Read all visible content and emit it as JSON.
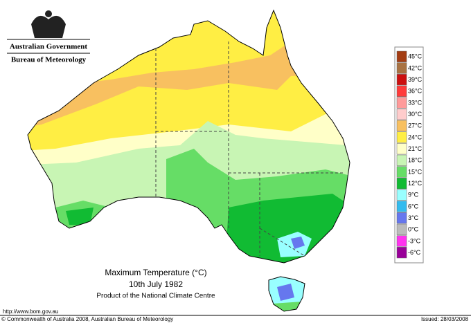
{
  "header": {
    "government": "Australian Government",
    "bureau": "Bureau of Meteorology"
  },
  "legend": {
    "items": [
      {
        "label": "45°C",
        "color": "#a33c12"
      },
      {
        "label": "42°C",
        "color": "#a87242"
      },
      {
        "label": "39°C",
        "color": "#cc1010"
      },
      {
        "label": "36°C",
        "color": "#ff3b3b"
      },
      {
        "label": "33°C",
        "color": "#ff9a9a"
      },
      {
        "label": "30°C",
        "color": "#ffcccc"
      },
      {
        "label": "27°C",
        "color": "#f8c060"
      },
      {
        "label": "24°C",
        "color": "#ffee44"
      },
      {
        "label": "21°C",
        "color": "#ffffc8"
      },
      {
        "label": "18°C",
        "color": "#c8f5b4"
      },
      {
        "label": "15°C",
        "color": "#66dd66"
      },
      {
        "label": "12°C",
        "color": "#11bb33"
      },
      {
        "label": "9°C",
        "color": "#99ffff"
      },
      {
        "label": "6°C",
        "color": "#33bbee"
      },
      {
        "label": "3°C",
        "color": "#6677ee"
      },
      {
        "label": "0°C",
        "color": "#bbbbbb"
      },
      {
        "label": "-3°C",
        "color": "#ff33ee"
      },
      {
        "label": "-6°C",
        "color": "#990099"
      }
    ]
  },
  "map_caption": {
    "title": "Maximum Temperature (°C)",
    "date": "10th July 1982",
    "product": "Product of the National Climate Centre"
  },
  "footer": {
    "url": "http://www.bom.gov.au",
    "copyright": "© Commonwealth of Australia 2008, Australian Bureau of Meteorology",
    "issued": "Issued: 28/03/2008"
  }
}
